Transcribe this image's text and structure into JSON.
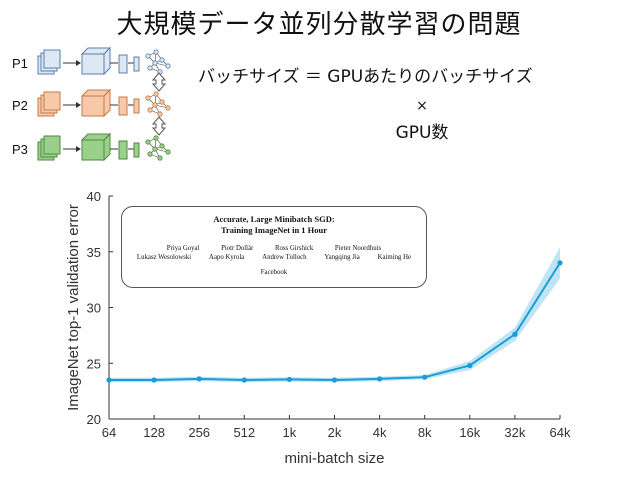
{
  "slide": {
    "title": "大規模データ並列分散学習の問題"
  },
  "diagram": {
    "processes": [
      {
        "label": "P1",
        "fill": "#dde8f5",
        "stroke": "#5b7fa8"
      },
      {
        "label": "P2",
        "fill": "#f5c9aa",
        "stroke": "#c77a45"
      },
      {
        "label": "P3",
        "fill": "#9bd08a",
        "stroke": "#4e8a3c"
      }
    ]
  },
  "equation": {
    "lhs": "バッチサイズ ＝ GPUあたりのバッチサイズ",
    "times": "×",
    "rhs": "GPU数"
  },
  "paper": {
    "title": "Accurate, Large Minibatch SGD:",
    "subtitle": "Training ImageNet in 1 Hour",
    "authors_row1": [
      "Priya Goyal",
      "Piotr Dollár",
      "Ross Girshick",
      "Pieter Noordhuis"
    ],
    "authors_row2": [
      "Lukasz Wesolowski",
      "Aapo Kyrola",
      "Andrew Tulloch",
      "Yangqing Jia",
      "Kaiming He"
    ],
    "affiliation": "Facebook"
  },
  "colors": {
    "line": "#1b9bd7",
    "band": "#a9dcf2",
    "grid": "#e4e4e4",
    "axis": "#333333"
  },
  "chart_data": {
    "type": "line",
    "xlabel": "mini-batch size",
    "ylabel": "ImageNet top-1 validation error",
    "categories": [
      "64",
      "128",
      "256",
      "512",
      "1k",
      "2k",
      "4k",
      "8k",
      "16k",
      "32k",
      "64k"
    ],
    "y_ticks": [
      "20",
      "25",
      "30",
      "35",
      "40"
    ],
    "ylim": [
      20,
      40
    ],
    "series": [
      {
        "values": [
          23.5,
          23.5,
          23.6,
          23.5,
          23.55,
          23.5,
          23.6,
          23.75,
          24.8,
          27.6,
          34.0
        ],
        "band_upper": [
          23.7,
          23.7,
          23.8,
          23.7,
          23.75,
          23.7,
          23.8,
          23.95,
          25.2,
          28.2,
          35.4
        ],
        "band_lower": [
          23.3,
          23.3,
          23.4,
          23.3,
          23.35,
          23.3,
          23.4,
          23.55,
          24.4,
          27.0,
          32.6
        ]
      }
    ],
    "grid": false,
    "legend": "none"
  }
}
